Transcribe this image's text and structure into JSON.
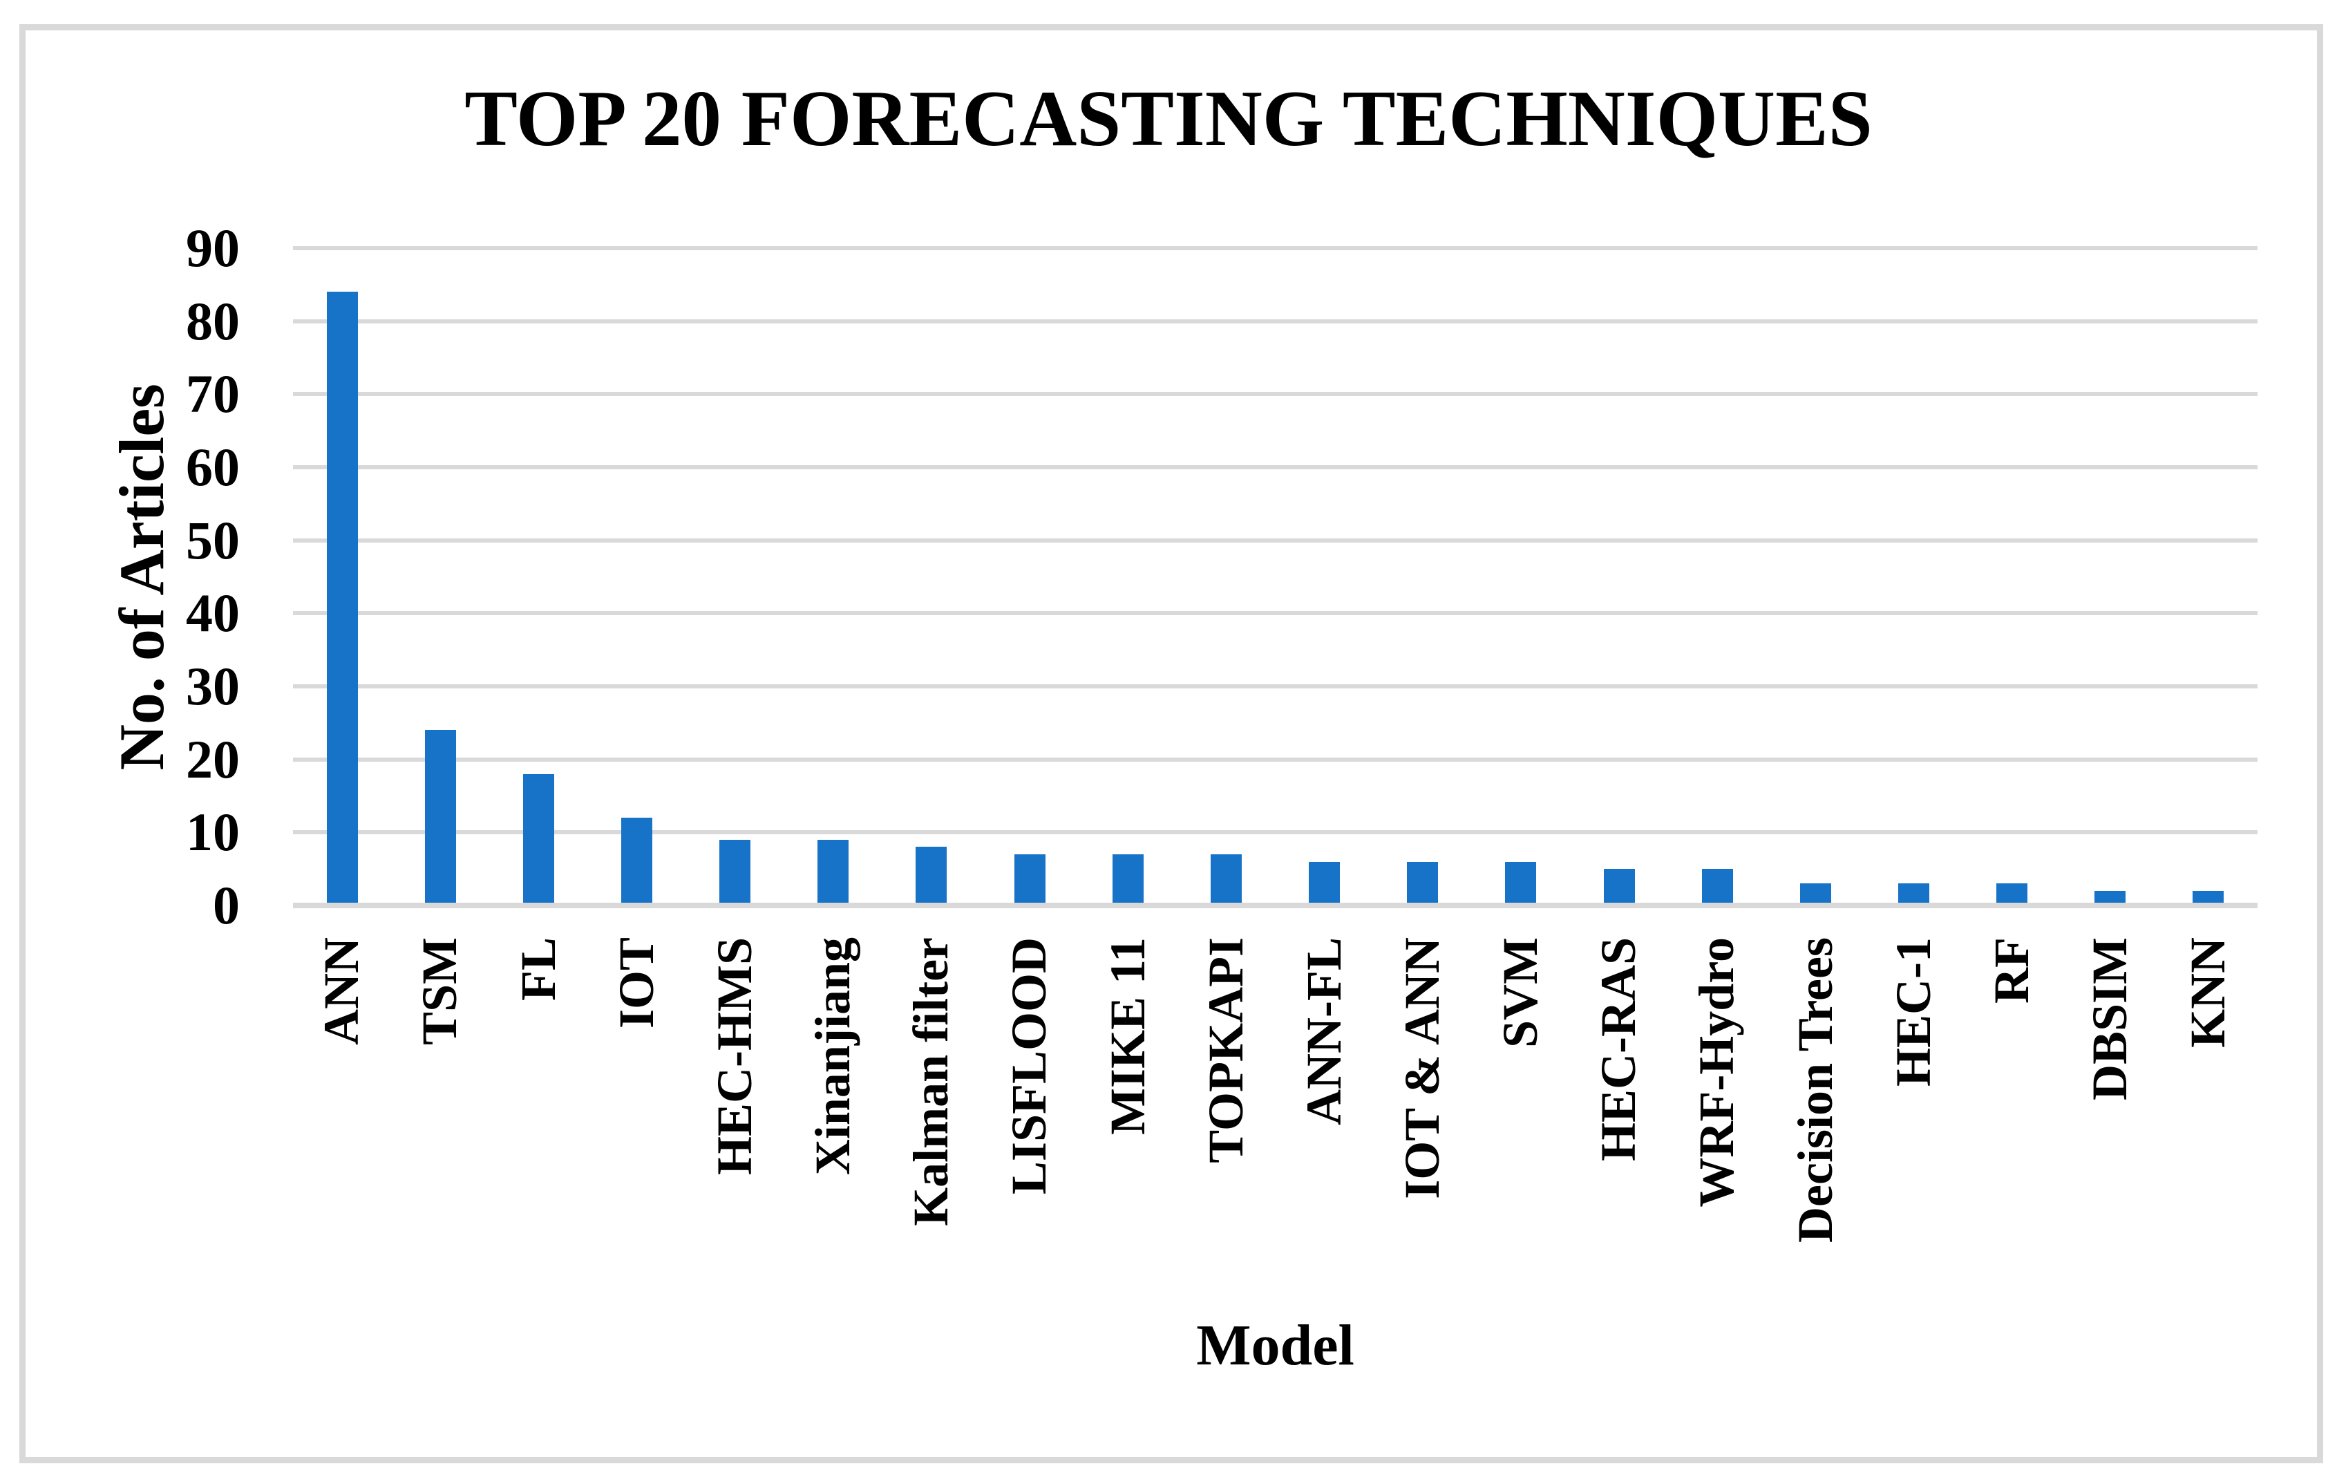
{
  "figure": {
    "background": "#FFFFFF",
    "border_color": "#D9D9D9"
  },
  "chart_data": {
    "type": "bar",
    "title": "TOP 20 FORECASTING TECHNIQUES",
    "xlabel": "Model",
    "ylabel": "No. of Articles",
    "categories": [
      "ANN",
      "TSM",
      "FL",
      "IOT",
      "HEC-HMS",
      "Xinanjiang",
      "Kalman filter",
      "LISFLOOD",
      "MIKE 11",
      "TOPKAPI",
      "ANN-FL",
      "IOT & ANN",
      "SVM",
      "HEC-RAS",
      "WRF-Hydro",
      "Decision Trees",
      "HEC-1",
      "RF",
      "DBSIM",
      "KNN"
    ],
    "values": [
      84,
      24,
      18,
      12,
      9,
      9,
      8,
      7,
      7,
      7,
      6,
      6,
      6,
      5,
      5,
      3,
      3,
      3,
      2,
      2
    ],
    "ylim": [
      0,
      90
    ],
    "ytick_interval": 10,
    "yticks": [
      0,
      10,
      20,
      30,
      40,
      50,
      60,
      70,
      80,
      90
    ],
    "grid": true,
    "legend": "none",
    "bar_color": "#1773C7",
    "gridline_color": "#D9D9D9",
    "axisline_color": "#D9D9D9",
    "x_label_rotation": "bottom-to-top"
  }
}
